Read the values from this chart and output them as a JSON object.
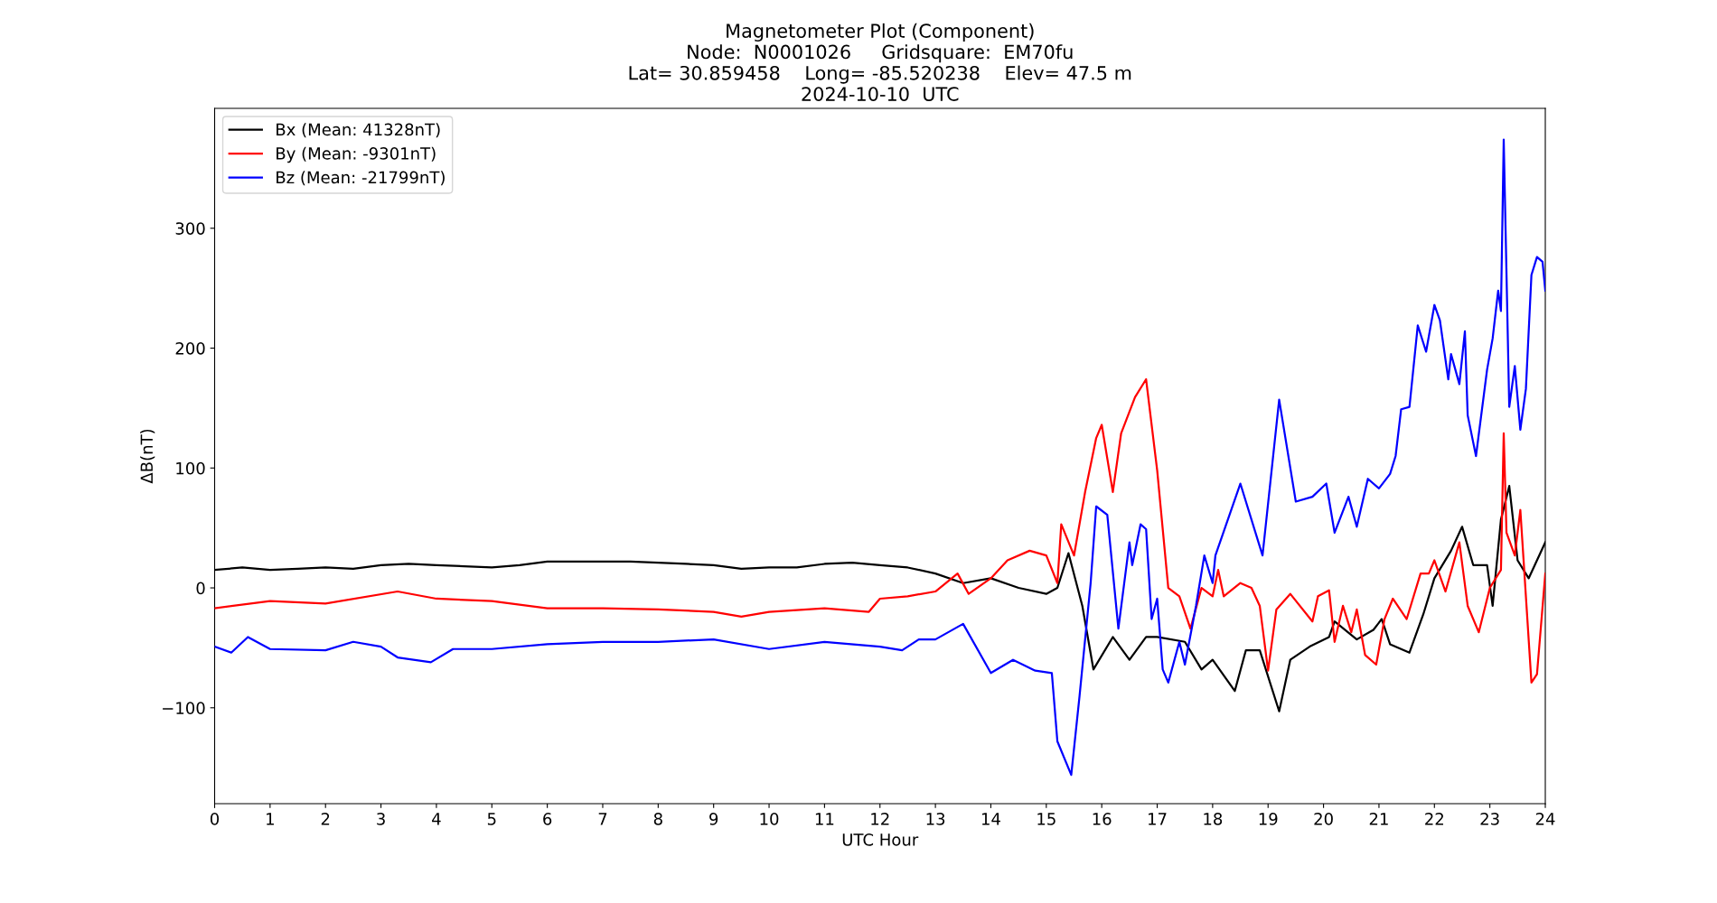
{
  "chart_data": {
    "type": "line",
    "title": "Magnetometer Plot (Component)\nNode:  N0001026     Gridsquare:  EM70fu\nLat= 30.859458    Long= -85.520238    Elev= 47.5 m\n2024-10-10  UTC",
    "xlabel": "UTC Hour",
    "ylabel": "ΔB(nT)",
    "xlim": [
      0,
      24
    ],
    "xticks": [
      0,
      1,
      2,
      3,
      4,
      5,
      6,
      7,
      8,
      9,
      10,
      11,
      12,
      13,
      14,
      15,
      16,
      17,
      18,
      19,
      20,
      21,
      22,
      23,
      24
    ],
    "ylim": [
      -180,
      400
    ],
    "yticks": [
      -100,
      0,
      100,
      200,
      300
    ],
    "legend": "top left",
    "grid": false,
    "series": [
      {
        "name": "Bx (Mean: 41328nT)",
        "color": "#000000",
        "x": [
          0,
          0.5,
          1,
          1.5,
          2,
          2.5,
          3,
          3.5,
          4,
          4.5,
          5,
          5.5,
          6,
          6.5,
          7,
          7.5,
          8,
          8.5,
          9,
          9.5,
          10,
          10.5,
          11,
          11.5,
          12,
          12.5,
          13,
          13.5,
          14,
          14.5,
          15,
          15.2,
          15.4,
          15.65,
          15.85,
          16.2,
          16.5,
          16.8,
          17,
          17.5,
          17.8,
          18,
          18.4,
          18.6,
          18.85,
          19.2,
          19.4,
          19.75,
          20.1,
          20.2,
          20.6,
          20.9,
          21.05,
          21.2,
          21.55,
          21.8,
          22,
          22.3,
          22.5,
          22.7,
          22.95,
          23.05,
          23.2,
          23.35,
          23.5,
          23.7,
          24
        ],
        "values": [
          15,
          17,
          15,
          16,
          17,
          16,
          19,
          20,
          19,
          18,
          17,
          19,
          22,
          22,
          22,
          22,
          21,
          20,
          19,
          16,
          17,
          17,
          20,
          21,
          19,
          17,
          12,
          4,
          8,
          0,
          -5,
          0,
          29,
          -15,
          -68,
          -41,
          -60,
          -41,
          -41,
          -45,
          -68,
          -60,
          -86,
          -52,
          -52,
          -103,
          -60,
          -49,
          -41,
          -28,
          -43,
          -35,
          -26,
          -47,
          -54,
          -22,
          8,
          31,
          51,
          19,
          19,
          -15,
          57,
          85,
          23,
          8,
          38
        ]
      },
      {
        "name": "By (Mean: -9301nT)",
        "color": "#ff0000",
        "x": [
          0,
          1,
          2,
          3.3,
          4,
          5,
          6,
          7,
          8,
          9,
          9.5,
          10,
          11,
          11.8,
          12,
          12.5,
          13,
          13.4,
          13.6,
          14,
          14.3,
          14.7,
          15,
          15.2,
          15.27,
          15.5,
          15.7,
          15.9,
          16,
          16.2,
          16.35,
          16.6,
          16.8,
          17,
          17.2,
          17.4,
          17.6,
          17.8,
          18,
          18.1,
          18.2,
          18.5,
          18.7,
          18.85,
          19,
          19.15,
          19.4,
          19.8,
          19.9,
          20.1,
          20.2,
          20.35,
          20.5,
          20.6,
          20.75,
          20.95,
          21.1,
          21.25,
          21.5,
          21.75,
          21.9,
          22,
          22.2,
          22.45,
          22.6,
          22.8,
          23,
          23.2,
          23.25,
          23.3,
          23.45,
          23.55,
          23.75,
          23.85,
          24
        ],
        "values": [
          -17,
          -11,
          -13,
          -3,
          -9,
          -11,
          -17,
          -17,
          -18,
          -20,
          -24,
          -20,
          -17,
          -20,
          -9,
          -7,
          -3,
          12,
          -5,
          8,
          23,
          31,
          27,
          4,
          53,
          27,
          80,
          125,
          136,
          80,
          129,
          159,
          174,
          98,
          0,
          -7,
          -34,
          0,
          -7,
          15,
          -7,
          4,
          0,
          -15,
          -69,
          -18,
          -5,
          -28,
          -7,
          -2,
          -45,
          -15,
          -37,
          -18,
          -56,
          -64,
          -26,
          -9,
          -26,
          12,
          12,
          23,
          -3,
          38,
          -15,
          -37,
          0,
          15,
          129,
          46,
          27,
          65,
          -79,
          -72,
          12
        ]
      },
      {
        "name": "Bz (Mean: -21799nT)",
        "color": "#0000ff",
        "x": [
          0,
          0.3,
          0.6,
          1,
          2,
          2.5,
          3,
          3.3,
          3.9,
          4.3,
          5,
          6,
          7,
          8,
          9,
          10,
          11,
          12,
          12.4,
          12.7,
          13,
          13.5,
          14,
          14.4,
          14.8,
          15.1,
          15.2,
          15.45,
          15.6,
          15.8,
          15.9,
          16.1,
          16.3,
          16.5,
          16.55,
          16.7,
          16.8,
          16.9,
          17,
          17.1,
          17.2,
          17.4,
          17.5,
          17.7,
          17.85,
          18,
          18.05,
          18.5,
          18.9,
          19.2,
          19.5,
          19.8,
          20.05,
          20.2,
          20.45,
          20.6,
          20.8,
          21,
          21.2,
          21.3,
          21.4,
          21.55,
          21.7,
          21.85,
          22,
          22.1,
          22.25,
          22.3,
          22.45,
          22.55,
          22.6,
          22.75,
          22.95,
          23.05,
          23.15,
          23.2,
          23.25,
          23.35,
          23.45,
          23.55,
          23.65,
          23.75,
          23.85,
          23.95,
          24
        ],
        "values": [
          -49,
          -54,
          -41,
          -51,
          -52,
          -45,
          -49,
          -58,
          -62,
          -51,
          -51,
          -47,
          -45,
          -45,
          -43,
          -51,
          -45,
          -49,
          -52,
          -43,
          -43,
          -30,
          -71,
          -60,
          -69,
          -71,
          -128,
          -156,
          -90,
          4,
          68,
          61,
          -34,
          38,
          19,
          53,
          49,
          -26,
          -9,
          -68,
          -79,
          -45,
          -64,
          -15,
          27,
          4,
          27,
          87,
          27,
          157,
          72,
          76,
          87,
          46,
          76,
          51,
          91,
          83,
          95,
          110,
          149,
          151,
          219,
          197,
          236,
          223,
          174,
          195,
          170,
          214,
          144,
          110,
          182,
          208,
          248,
          231,
          374,
          151,
          185,
          132,
          166,
          261,
          276,
          272,
          248
        ]
      }
    ]
  }
}
